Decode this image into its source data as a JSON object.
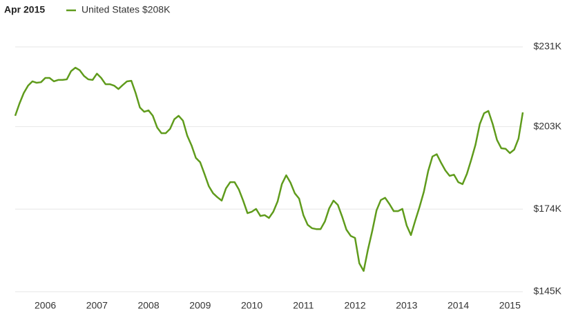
{
  "chart_data": {
    "type": "line",
    "title": "Apr 2015",
    "x": [
      2005.417,
      2005.5,
      2005.583,
      2005.667,
      2005.75,
      2005.833,
      2005.917,
      2006.0,
      2006.083,
      2006.167,
      2006.25,
      2006.333,
      2006.417,
      2006.5,
      2006.583,
      2006.667,
      2006.75,
      2006.833,
      2006.917,
      2007.0,
      2007.083,
      2007.167,
      2007.25,
      2007.333,
      2007.417,
      2007.5,
      2007.583,
      2007.667,
      2007.75,
      2007.833,
      2007.917,
      2008.0,
      2008.083,
      2008.167,
      2008.25,
      2008.333,
      2008.417,
      2008.5,
      2008.583,
      2008.667,
      2008.75,
      2008.833,
      2008.917,
      2009.0,
      2009.083,
      2009.167,
      2009.25,
      2009.333,
      2009.417,
      2009.5,
      2009.583,
      2009.667,
      2009.75,
      2009.833,
      2009.917,
      2010.0,
      2010.083,
      2010.167,
      2010.25,
      2010.333,
      2010.417,
      2010.5,
      2010.583,
      2010.667,
      2010.75,
      2010.833,
      2010.917,
      2011.0,
      2011.083,
      2011.167,
      2011.25,
      2011.333,
      2011.417,
      2011.5,
      2011.583,
      2011.667,
      2011.75,
      2011.833,
      2011.917,
      2012.0,
      2012.083,
      2012.167,
      2012.25,
      2012.333,
      2012.417,
      2012.5,
      2012.583,
      2012.667,
      2012.75,
      2012.833,
      2012.917,
      2013.0,
      2013.083,
      2013.167,
      2013.25,
      2013.333,
      2013.417,
      2013.5,
      2013.583,
      2013.667,
      2013.75,
      2013.833,
      2013.917,
      2014.0,
      2014.083,
      2014.167,
      2014.25,
      2014.333,
      2014.417,
      2014.5,
      2014.583,
      2014.667,
      2014.75,
      2014.833,
      2014.917,
      2015.0,
      2015.083,
      2015.167,
      2015.25
    ],
    "series": [
      {
        "name": "United States $208K",
        "color": "#5f9b1c",
        "values": [
          206.8,
          211.1,
          214.8,
          217.4,
          218.9,
          218.4,
          218.6,
          220.1,
          220.1,
          218.9,
          219.4,
          219.4,
          219.6,
          222.5,
          223.7,
          222.8,
          220.8,
          219.6,
          219.4,
          221.6,
          220.1,
          217.9,
          217.9,
          217.4,
          216.2,
          217.6,
          218.9,
          219.1,
          214.8,
          209.7,
          208.2,
          208.7,
          206.8,
          202.7,
          200.7,
          200.7,
          202.2,
          205.6,
          206.8,
          205.1,
          199.8,
          196.4,
          192.0,
          190.5,
          186.4,
          182.1,
          179.6,
          178.2,
          177.0,
          181.3,
          183.5,
          183.5,
          180.9,
          177.0,
          172.6,
          173.1,
          174.1,
          171.6,
          171.9,
          170.9,
          173.1,
          176.7,
          182.8,
          185.9,
          183.3,
          179.6,
          177.7,
          171.9,
          168.5,
          167.3,
          167.0,
          167.0,
          169.7,
          174.3,
          177.0,
          175.5,
          171.4,
          166.8,
          164.6,
          163.9,
          155.0,
          152.3,
          159.8,
          166.3,
          173.6,
          177.2,
          178.0,
          175.8,
          173.3,
          173.3,
          174.1,
          168.3,
          164.9,
          170.0,
          174.8,
          180.1,
          187.4,
          192.5,
          193.3,
          190.3,
          187.6,
          185.7,
          186.1,
          183.5,
          182.8,
          186.4,
          191.3,
          196.6,
          203.9,
          207.7,
          208.5,
          203.9,
          198.3,
          195.4,
          195.2,
          193.7,
          194.9,
          198.8,
          208
        ]
      }
    ],
    "xlim": [
      2005.417,
      2015.25
    ],
    "xticks": [
      2006,
      2007,
      2008,
      2009,
      2010,
      2011,
      2012,
      2013,
      2014,
      2015
    ],
    "ylim": [
      145,
      231
    ],
    "yticks": [
      {
        "value": 145,
        "label": "$145K"
      },
      {
        "value": 174,
        "label": "$174K"
      },
      {
        "value": 203,
        "label": "$203K"
      },
      {
        "value": 231,
        "label": "$231K"
      }
    ],
    "grid": true
  }
}
